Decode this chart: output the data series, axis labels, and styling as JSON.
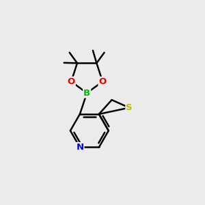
{
  "bg_color": "#ebebeb",
  "atom_colors": {
    "C": "#000000",
    "N": "#0000ee",
    "S": "#bbbb00",
    "O": "#ee0000",
    "B": "#00bb00"
  },
  "bond_color": "#000000",
  "bond_width": 1.8,
  "dbo": 0.12
}
